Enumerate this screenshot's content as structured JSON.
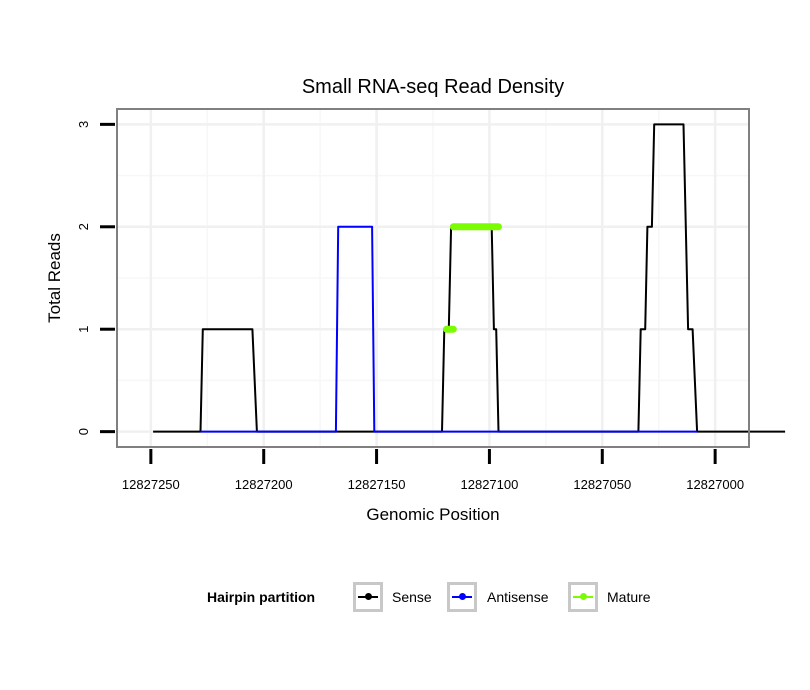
{
  "chart_data": {
    "type": "line",
    "title": "Small RNA-seq Read Density",
    "xlabel": "Genomic Position",
    "ylabel": "Total Reads",
    "x_reversed": true,
    "xlim": [
      12827265,
      12826985
    ],
    "ylim": [
      -0.15,
      3.15
    ],
    "x_ticks": [
      12827250,
      12827200,
      12827150,
      12827100,
      12827050,
      12827000
    ],
    "x_tick_labels": [
      "12827250",
      "12827200",
      "12827150",
      "12827100",
      "12827050",
      "12827000"
    ],
    "y_ticks": [
      0,
      1,
      2,
      3
    ],
    "y_tick_labels": [
      "0",
      "1",
      "2",
      "3"
    ],
    "grid": true,
    "legend": {
      "title": "Hairpin partition",
      "position": "bottom"
    },
    "series": [
      {
        "name": "Sense",
        "color": "#000000",
        "points": [
          [
            12827249,
            0
          ],
          [
            12827228,
            0
          ],
          [
            12827227,
            1
          ],
          [
            12827205,
            1
          ],
          [
            12827203,
            0
          ],
          [
            12827121,
            0
          ],
          [
            12827120,
            1
          ],
          [
            12827118,
            1
          ],
          [
            12827117,
            2
          ],
          [
            12827099,
            2
          ],
          [
            12827098,
            1
          ],
          [
            12827097,
            1
          ],
          [
            12827096,
            0
          ],
          [
            12827034,
            0
          ],
          [
            12827033,
            1
          ],
          [
            12827031,
            1
          ],
          [
            12827030,
            2
          ],
          [
            12827028,
            2
          ],
          [
            12827027,
            3
          ],
          [
            12827014,
            3
          ],
          [
            12827012,
            1
          ],
          [
            12827010,
            1
          ],
          [
            12827008,
            0
          ],
          [
            12826969,
            0
          ]
        ]
      },
      {
        "name": "Antisense",
        "color": "#0000ff",
        "points": [
          [
            12827228,
            0
          ],
          [
            12827204,
            0
          ],
          [
            12827168,
            0
          ],
          [
            12827167,
            2
          ],
          [
            12827152,
            2
          ],
          [
            12827151,
            0
          ],
          [
            12827117,
            0
          ],
          [
            12827096,
            0
          ],
          [
            12827030,
            0
          ],
          [
            12827008,
            0
          ]
        ]
      },
      {
        "name": "Mature",
        "color": "#7cfc00",
        "segments": [
          {
            "x": [
              12827119,
              12827116
            ],
            "y": 1
          },
          {
            "x": [
              12827116,
              12827096
            ],
            "y": 2
          }
        ]
      }
    ]
  }
}
